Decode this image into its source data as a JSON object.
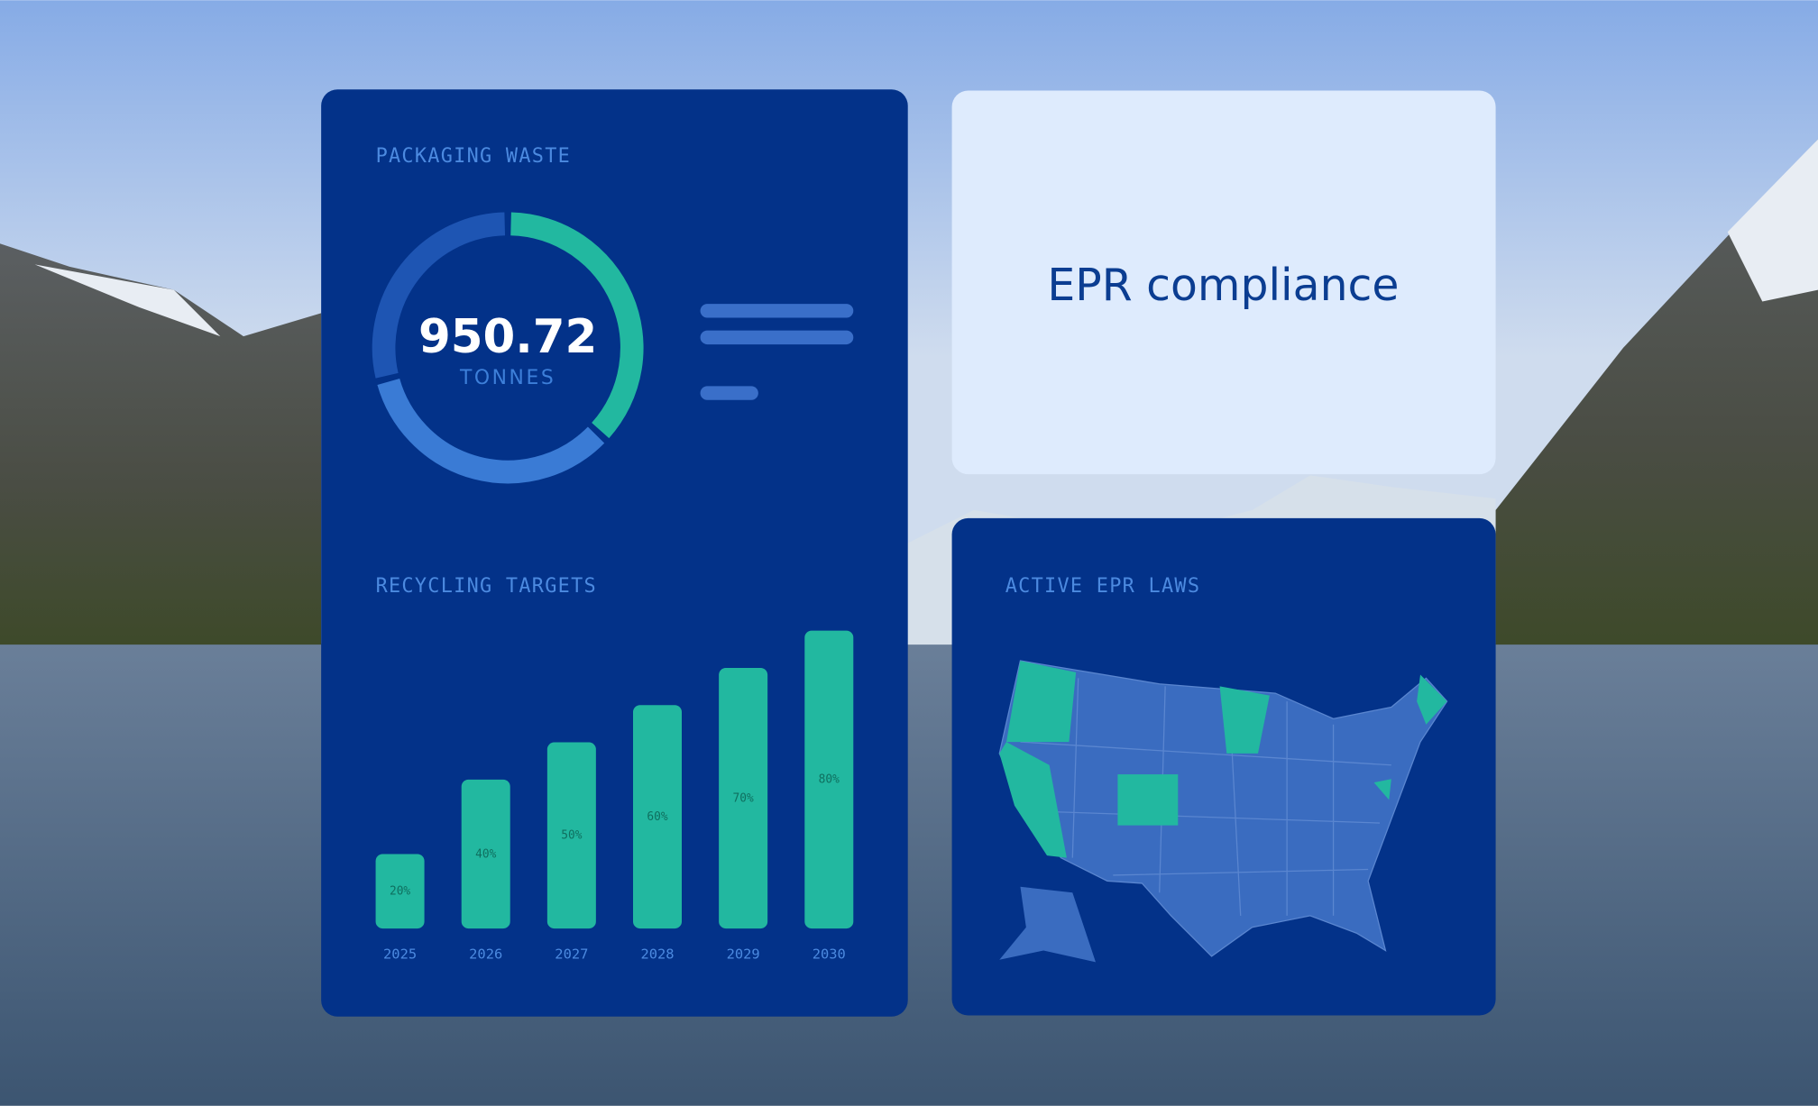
{
  "cards": {
    "packaging_title": "PACKAGING WASTE",
    "donut_value": "950.72",
    "donut_unit": "TONNES",
    "recycling_title": "RECYCLING TARGETS",
    "compliance_title": "EPR compliance",
    "laws_title": "ACTIVE EPR LAWS"
  },
  "chart_data": [
    {
      "type": "donut",
      "values": [
        37,
        34,
        29
      ],
      "colors": [
        "#22b8a0",
        "#3a7bd5",
        "#1e55b3"
      ]
    },
    {
      "type": "bar",
      "categories": [
        "2025",
        "2026",
        "2027",
        "2028",
        "2029",
        "2030"
      ],
      "values": [
        20,
        40,
        50,
        60,
        70,
        80
      ],
      "value_labels": [
        "20%",
        "40%",
        "50%",
        "60%",
        "70%",
        "80%"
      ],
      "color": "#22b8a0",
      "ylim": [
        0,
        80
      ]
    }
  ]
}
